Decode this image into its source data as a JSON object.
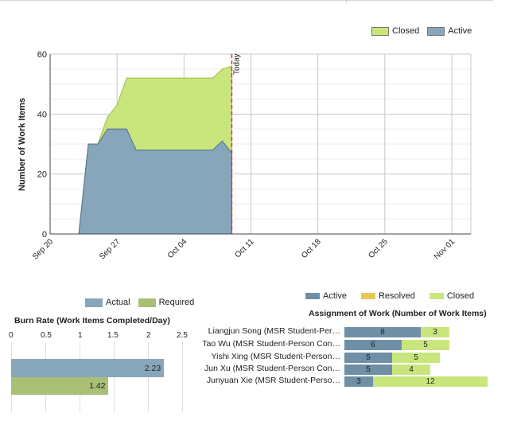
{
  "burndown": {
    "legend": [
      {
        "label": "Closed",
        "color": "#c9e67d"
      },
      {
        "label": "Active",
        "color": "#87a6bb"
      }
    ],
    "ylabel": "Number of Work Items",
    "today_label": "Today"
  },
  "chart_data": [
    {
      "type": "area",
      "title": "",
      "xlabel": "",
      "ylabel": "Number of Work Items",
      "x_ticks": [
        "Sep 20",
        "Sep 27",
        "Oct 04",
        "Oct 11",
        "Oct 18",
        "Oct 25",
        "Nov 01"
      ],
      "y_ticks": [
        0,
        20,
        40,
        60
      ],
      "ylim": [
        0,
        60
      ],
      "xlim": [
        "Sep 20",
        "Nov 03"
      ],
      "grid": true,
      "legend_position": "top-right",
      "marker": {
        "label": "Today",
        "date": "Oct 09",
        "color": "#e03030"
      },
      "dates": [
        "Sep 23",
        "Sep 24",
        "Sep 25",
        "Sep 26",
        "Sep 27",
        "Sep 28",
        "Sep 29",
        "Sep 30",
        "Oct 01",
        "Oct 02",
        "Oct 03",
        "Oct 04",
        "Oct 05",
        "Oct 06",
        "Oct 07",
        "Oct 08",
        "Oct 09"
      ],
      "series": [
        {
          "name": "Active",
          "values": [
            0,
            30,
            30,
            35,
            35,
            35,
            28,
            28,
            28,
            28,
            28,
            28,
            28,
            28,
            28,
            31,
            27
          ]
        },
        {
          "name": "Closed",
          "values": [
            0,
            0,
            0,
            4,
            8,
            17,
            24,
            24,
            24,
            24,
            24,
            24,
            24,
            24,
            24,
            24,
            29
          ]
        }
      ]
    },
    {
      "type": "bar",
      "orientation": "horizontal",
      "title": "Burn Rate (Work Items Completed/Day)",
      "x_ticks": [
        "0",
        "0.5",
        "1",
        "1.5",
        "2",
        "2.5"
      ],
      "xlim": [
        0,
        2.5
      ],
      "legend_position": "top",
      "categories": [
        "Actual",
        "Required"
      ],
      "values": [
        2.23,
        1.42
      ],
      "colors": [
        "#87a6bb",
        "#a9bf75"
      ]
    },
    {
      "type": "bar",
      "orientation": "horizontal",
      "stacked": true,
      "title": "Assignment of Work (Number of Work Items)",
      "legend_position": "top",
      "categories": [
        "Liangjun Song (MSR Student-Per…",
        "Tao Wu (MSR Student-Person Con…",
        "Yishi Xing (MSR Student-Person…",
        "Jun Xu (MSR Student-Person Con…",
        "Junyuan Xie (MSR Student-Perso…"
      ],
      "series": [
        {
          "name": "Active",
          "values": [
            8,
            6,
            5,
            5,
            3
          ],
          "color": "#6e8fa6"
        },
        {
          "name": "Resolved",
          "values": [
            0,
            0,
            0,
            0,
            0
          ],
          "color": "#e6c95a"
        },
        {
          "name": "Closed",
          "values": [
            3,
            5,
            5,
            4,
            12
          ],
          "color": "#c9e67d"
        }
      ]
    }
  ],
  "burn_rate": {
    "legend": [
      {
        "label": "Actual",
        "color": "#87a6bb"
      },
      {
        "label": "Required",
        "color": "#a9bf75"
      }
    ],
    "title": "Burn Rate (Work Items Completed/Day)",
    "scale": [
      "0",
      "0.5",
      "1",
      "1.5",
      "2",
      "2.5"
    ],
    "actual_value": "2.23",
    "required_value": "1.42"
  },
  "assignment": {
    "legend": [
      {
        "label": "Active",
        "color": "#6e8fa6"
      },
      {
        "label": "Resolved",
        "color": "#e6c95a"
      },
      {
        "label": "Closed",
        "color": "#c9e67d"
      }
    ],
    "title": "Assignment of Work (Number of Work Items)",
    "rows": [
      {
        "name": "Liangjun Song (MSR Student-Per…",
        "active": 8,
        "closed": 3,
        "active_label": "8",
        "closed_label": "3"
      },
      {
        "name": "Tao Wu (MSR Student-Person Con…",
        "active": 6,
        "closed": 5,
        "active_label": "6",
        "closed_label": "5"
      },
      {
        "name": "Yishi Xing (MSR Student-Person…",
        "active": 5,
        "closed": 5,
        "active_label": "5",
        "closed_label": "5"
      },
      {
        "name": "Jun Xu (MSR Student-Person Con…",
        "active": 5,
        "closed": 4,
        "active_label": "5",
        "closed_label": "4"
      },
      {
        "name": "Junyuan Xie (MSR Student-Perso…",
        "active": 3,
        "closed": 12,
        "active_label": "3",
        "closed_label": "12"
      }
    ]
  }
}
